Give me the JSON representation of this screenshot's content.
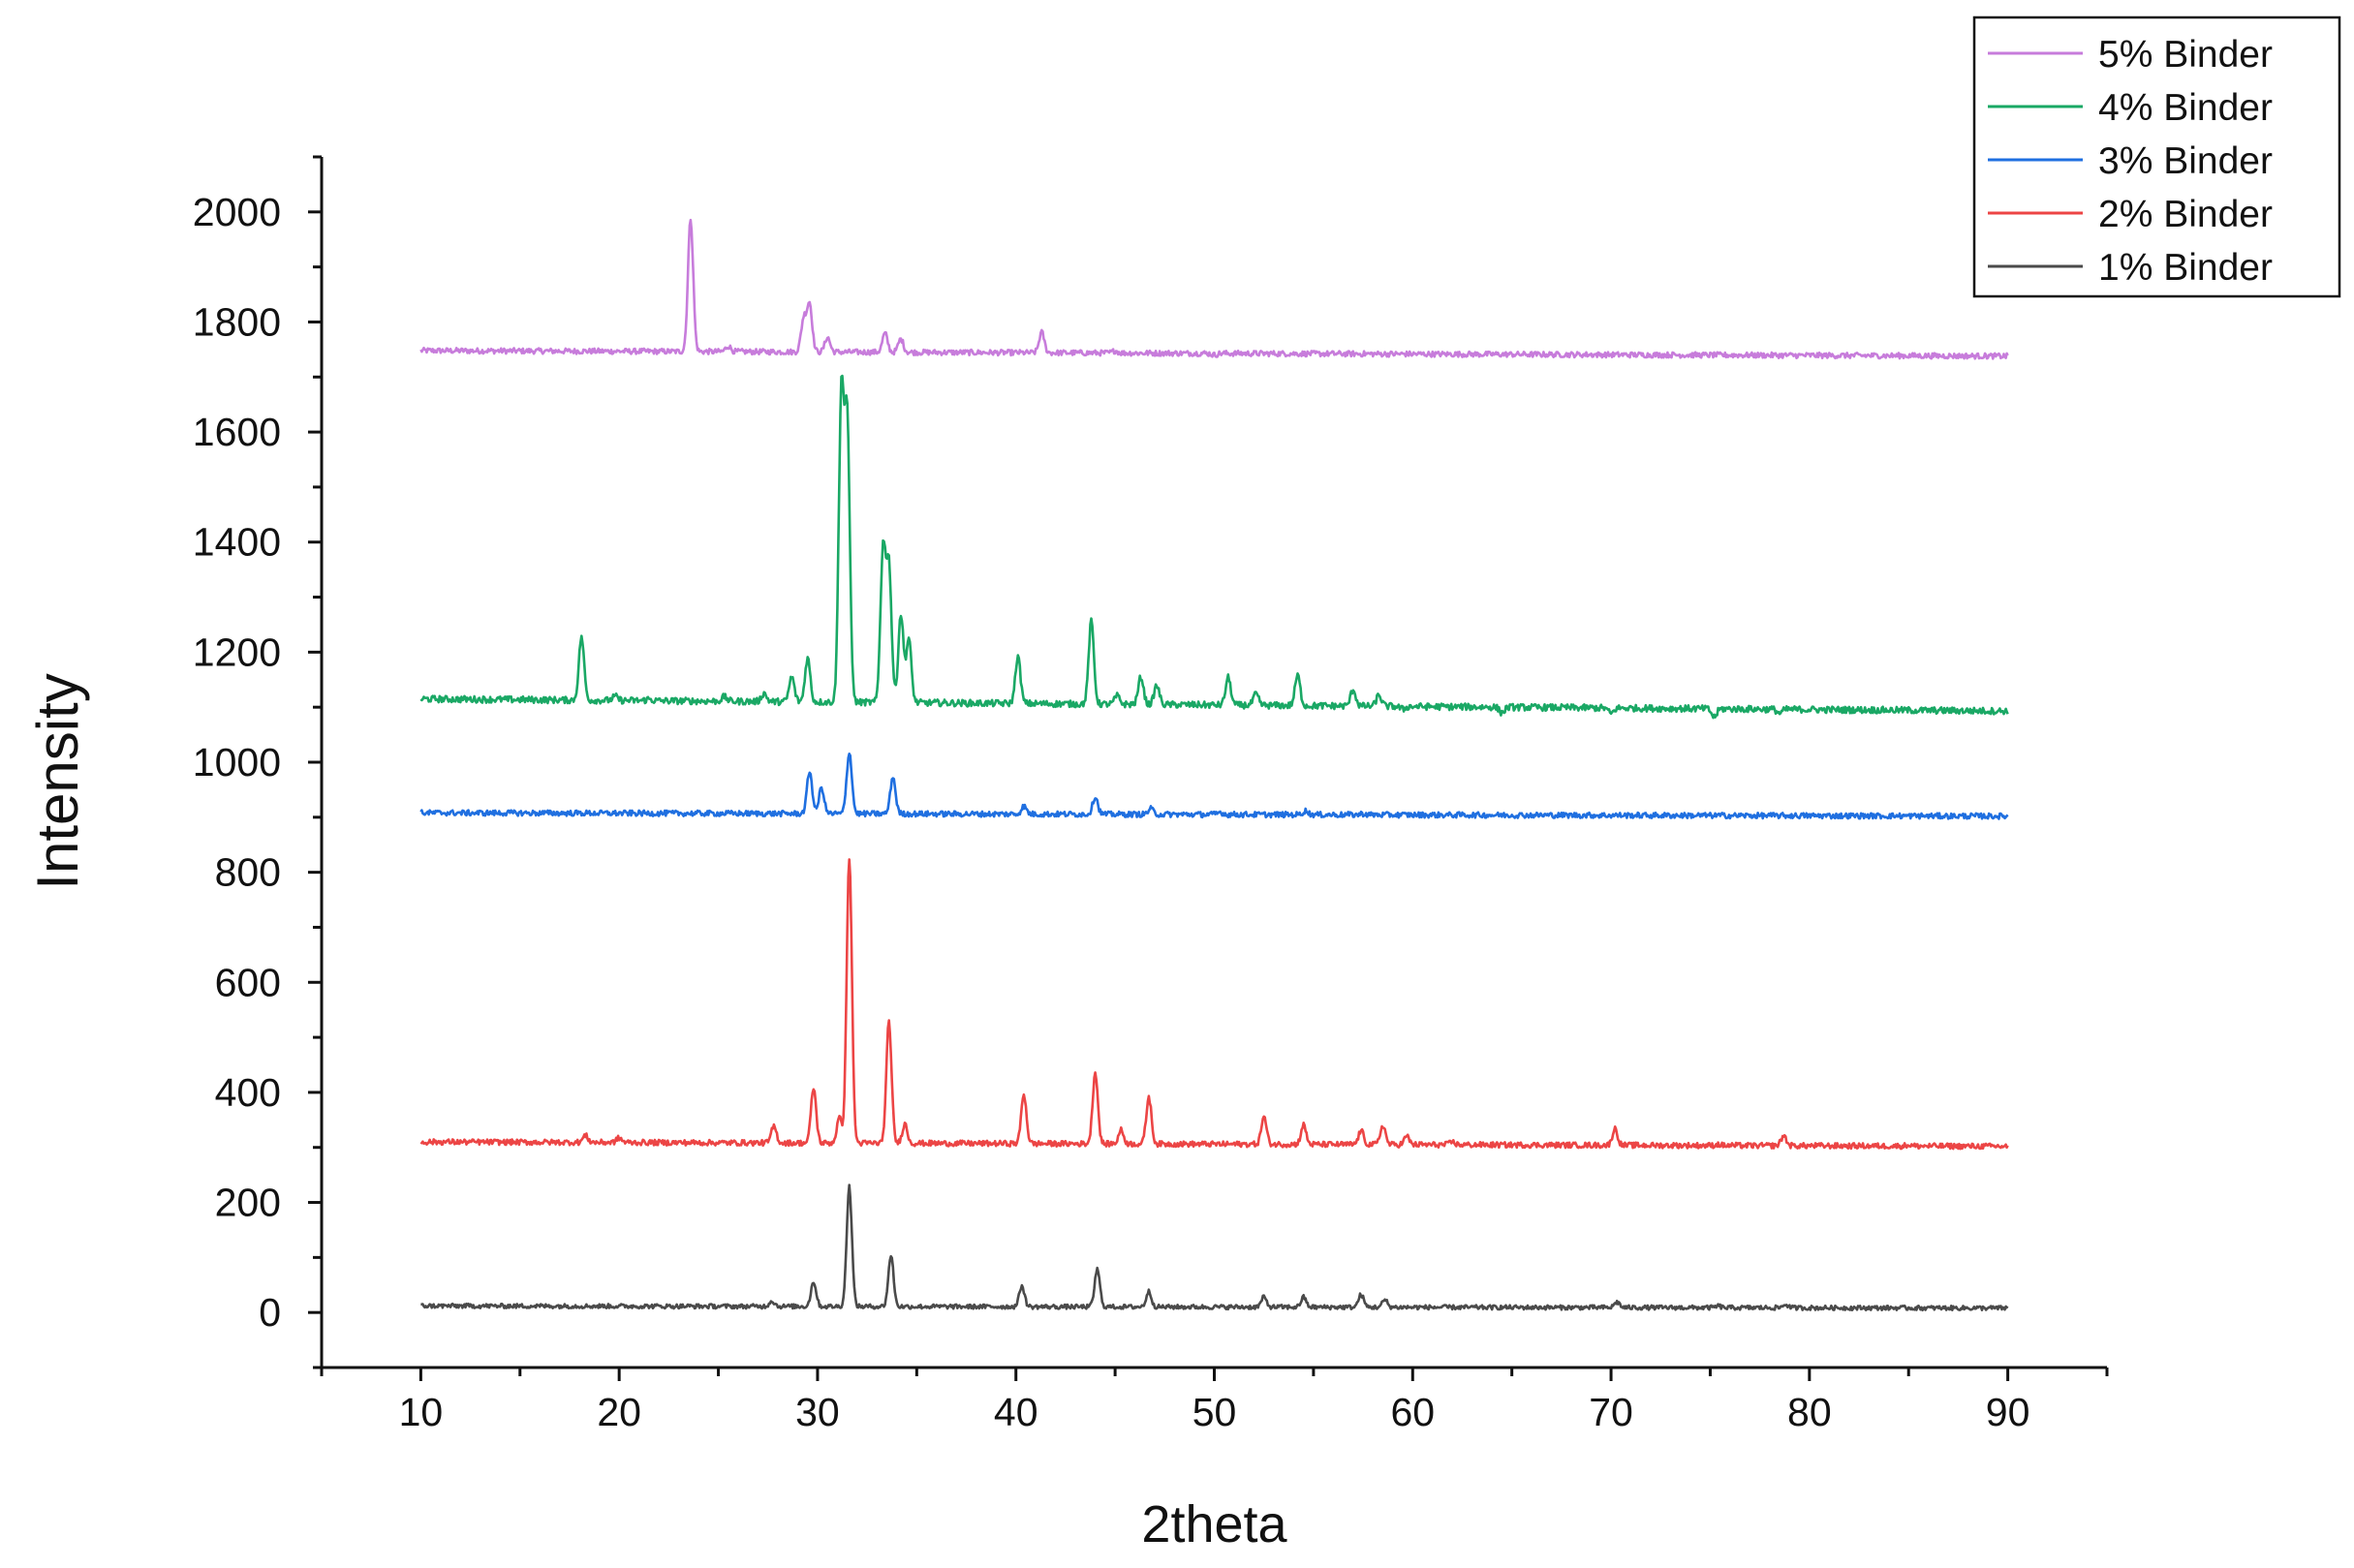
{
  "chart_data": {
    "type": "line",
    "title": "",
    "xlabel": "2theta",
    "ylabel": "Intensity",
    "xlim": [
      5,
      95
    ],
    "ylim": [
      -100,
      2100
    ],
    "x_ticks": [
      10,
      20,
      30,
      40,
      50,
      60,
      70,
      80,
      90
    ],
    "y_ticks": [
      0,
      200,
      400,
      600,
      800,
      1000,
      1200,
      1400,
      1600,
      1800,
      2000
    ],
    "grid": false,
    "legend_position": "top-right",
    "series": [
      {
        "name": "5% Binder",
        "color": "#c77cdb",
        "baseline_start": 1748,
        "baseline_end": 1738,
        "noise": 5,
        "peaks": [
          [
            23.6,
            1990
          ],
          [
            25.5,
            1758
          ],
          [
            29.3,
            1808
          ],
          [
            29.6,
            1835
          ],
          [
            30.5,
            1775
          ],
          [
            33.4,
            1782
          ],
          [
            34.2,
            1772
          ],
          [
            41.3,
            1785
          ],
          [
            45.0,
            1752
          ],
          [
            50.0,
            1745
          ]
        ]
      },
      {
        "name": "4% Binder",
        "color": "#1aa865",
        "baseline_start": 1115,
        "baseline_end": 1093,
        "noise": 6,
        "peaks": [
          [
            18.1,
            1230
          ],
          [
            19.8,
            1122
          ],
          [
            21.5,
            1118
          ],
          [
            25.3,
            1123
          ],
          [
            27.3,
            1130
          ],
          [
            28.7,
            1160
          ],
          [
            29.5,
            1195
          ],
          [
            31.2,
            1670
          ],
          [
            31.5,
            1615
          ],
          [
            33.3,
            1390
          ],
          [
            33.6,
            1360
          ],
          [
            34.2,
            1275
          ],
          [
            34.6,
            1230
          ],
          [
            40.1,
            1200
          ],
          [
            43.8,
            1265
          ],
          [
            45.1,
            1130
          ],
          [
            46.3,
            1165
          ],
          [
            47.1,
            1150
          ],
          [
            50.7,
            1165
          ],
          [
            52.1,
            1135
          ],
          [
            54.2,
            1170
          ],
          [
            57.0,
            1145
          ],
          [
            58.3,
            1135
          ],
          [
            59.5,
            1110
          ],
          [
            64.5,
            1105
          ],
          [
            70.0,
            1105
          ],
          [
            75.2,
            1100
          ],
          [
            78.5,
            1108
          ]
        ]
      },
      {
        "name": "3% Binder",
        "color": "#1f6fe0",
        "baseline_start": 908,
        "baseline_end": 902,
        "noise": 5,
        "peaks": [
          [
            29.6,
            985
          ],
          [
            30.2,
            955
          ],
          [
            31.6,
            1020
          ],
          [
            33.8,
            975
          ],
          [
            40.4,
            922
          ],
          [
            44.0,
            940
          ],
          [
            46.8,
            918
          ],
          [
            50.3,
            912
          ],
          [
            54.6,
            915
          ],
          [
            57.5,
            910
          ]
        ]
      },
      {
        "name": "2% Binder",
        "color": "#ec4545",
        "baseline_start": 310,
        "baseline_end": 302,
        "noise": 5,
        "peaks": [
          [
            18.3,
            322
          ],
          [
            20.0,
            318
          ],
          [
            27.8,
            340
          ],
          [
            29.8,
            410
          ],
          [
            31.1,
            355
          ],
          [
            31.6,
            830
          ],
          [
            33.6,
            530
          ],
          [
            34.4,
            345
          ],
          [
            40.4,
            400
          ],
          [
            44.0,
            440
          ],
          [
            45.3,
            335
          ],
          [
            46.7,
            395
          ],
          [
            52.5,
            360
          ],
          [
            54.5,
            345
          ],
          [
            57.4,
            335
          ],
          [
            58.5,
            345
          ],
          [
            59.7,
            325
          ],
          [
            62.0,
            315
          ],
          [
            70.2,
            340
          ],
          [
            75.4,
            312
          ],
          [
            78.7,
            328
          ],
          [
            85.0,
            312
          ]
        ]
      },
      {
        "name": "1% Binder",
        "color": "#4a4a4a",
        "baseline_start": 12,
        "baseline_end": 8,
        "noise": 4,
        "peaks": [
          [
            27.7,
            22
          ],
          [
            29.8,
            57
          ],
          [
            31.6,
            230
          ],
          [
            33.7,
            105
          ],
          [
            40.3,
            50
          ],
          [
            44.1,
            80
          ],
          [
            46.7,
            40
          ],
          [
            52.5,
            30
          ],
          [
            54.5,
            30
          ],
          [
            57.4,
            35
          ],
          [
            58.6,
            25
          ],
          [
            70.3,
            22
          ],
          [
            75.4,
            15
          ],
          [
            78.8,
            18
          ]
        ]
      }
    ]
  },
  "legend": {
    "items": [
      {
        "label": "5% Binder",
        "color": "#c77cdb"
      },
      {
        "label": "4% Binder",
        "color": "#1aa865"
      },
      {
        "label": "3% Binder",
        "color": "#1f6fe0"
      },
      {
        "label": "2% Binder",
        "color": "#ec4545"
      },
      {
        "label": "1% Binder",
        "color": "#4a4a4a"
      }
    ]
  }
}
